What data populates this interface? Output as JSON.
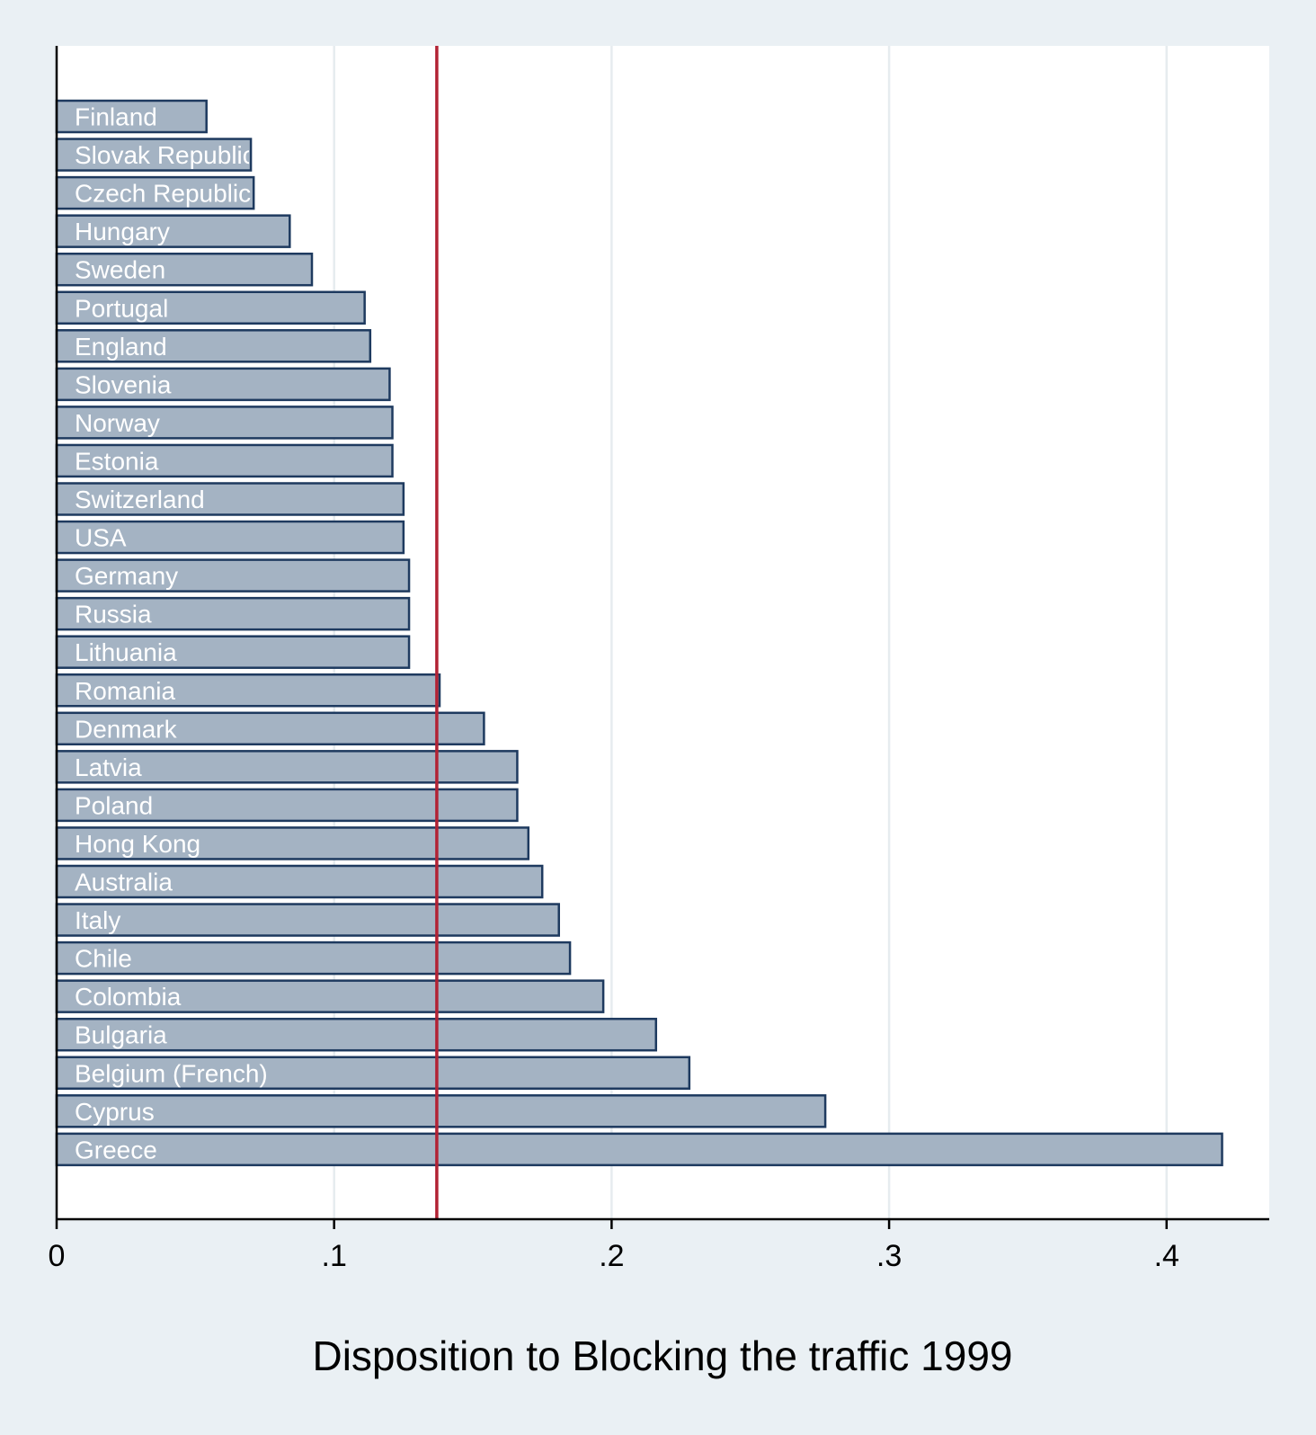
{
  "chart_data": {
    "type": "bar",
    "orientation": "horizontal",
    "xlabel": "Disposition to Blocking the traffic 1999",
    "xlim": [
      0,
      0.437
    ],
    "xticks": [
      0,
      0.1,
      0.2,
      0.3,
      0.4
    ],
    "xtick_labels": [
      "0",
      ".1",
      ".2",
      ".3",
      ".4"
    ],
    "grid": true,
    "reference_line": {
      "value": 0.137,
      "color": "#b22234"
    },
    "categories": [
      "Finland",
      "Slovak Republic",
      "Czech Republic",
      "Hungary",
      "Sweden",
      "Portugal",
      "England",
      "Slovenia",
      "Norway",
      "Estonia",
      "Switzerland",
      "USA",
      "Germany",
      "Russia",
      "Lithuania",
      "Romania",
      "Denmark",
      "Latvia",
      "Poland",
      "Hong Kong",
      "Australia",
      "Italy",
      "Chile",
      "Colombia",
      "Bulgaria",
      "Belgium (French)",
      "Cyprus",
      "Greece"
    ],
    "values": [
      0.054,
      0.07,
      0.071,
      0.084,
      0.092,
      0.111,
      0.113,
      0.12,
      0.121,
      0.121,
      0.125,
      0.125,
      0.127,
      0.127,
      0.127,
      0.138,
      0.154,
      0.166,
      0.166,
      0.17,
      0.175,
      0.181,
      0.185,
      0.197,
      0.216,
      0.228,
      0.277,
      0.42
    ],
    "colors": {
      "bar_fill": "#a4b3c3",
      "bar_stroke": "#1e3a5f",
      "plot_bg": "#ffffff",
      "outer_bg": "#eaf0f4",
      "grid": "#e6ecef",
      "axis": "#000000"
    }
  }
}
